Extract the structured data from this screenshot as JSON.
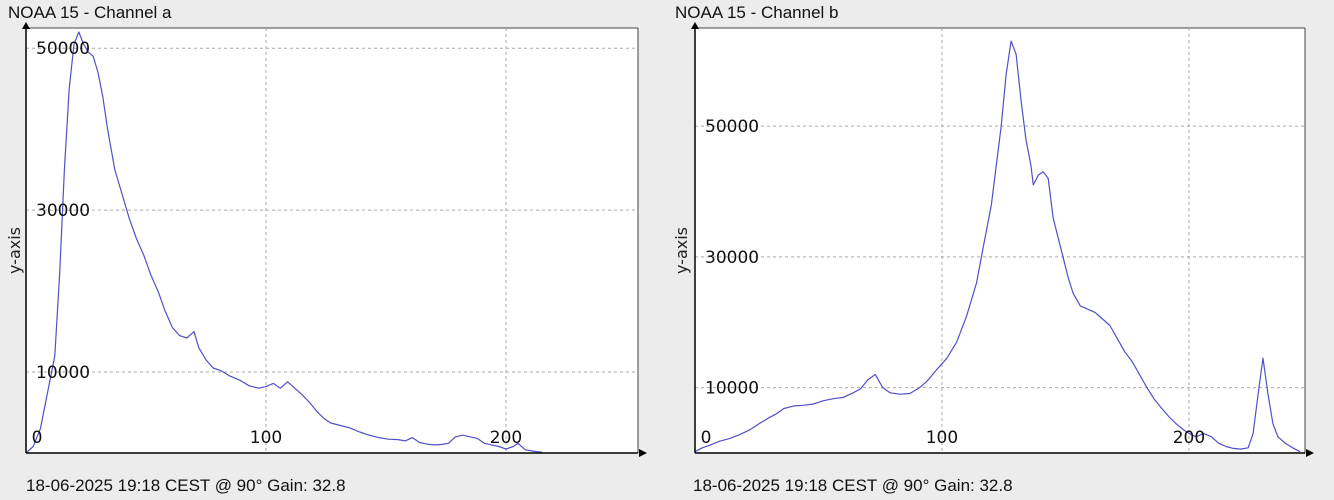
{
  "chart_data": [
    {
      "type": "line",
      "title": "NOAA 15 - Channel a",
      "footer": "18-06-2025 19:18 CEST @ 90° Gain: 32.8",
      "ylabel": "y-axis",
      "xlabel": "",
      "xlim": [
        0,
        255
      ],
      "ylim": [
        0,
        52500
      ],
      "x_ticks": [
        0,
        100,
        200
      ],
      "y_ticks": [
        10000,
        30000,
        50000
      ],
      "grid": true,
      "line_color": "#5050c8",
      "points": [
        [
          0,
          0
        ],
        [
          3,
          800
        ],
        [
          6,
          3000
        ],
        [
          9,
          7500
        ],
        [
          12,
          12000
        ],
        [
          14,
          22000
        ],
        [
          16,
          35000
        ],
        [
          18,
          45000
        ],
        [
          20,
          50500
        ],
        [
          22,
          52000
        ],
        [
          24,
          50500
        ],
        [
          26,
          49500
        ],
        [
          28,
          49000
        ],
        [
          30,
          47000
        ],
        [
          32,
          44000
        ],
        [
          34,
          40000
        ],
        [
          37,
          35000
        ],
        [
          40,
          32000
        ],
        [
          43,
          29000
        ],
        [
          46,
          26500
        ],
        [
          49,
          24500
        ],
        [
          52,
          22000
        ],
        [
          55,
          20000
        ],
        [
          58,
          17500
        ],
        [
          61,
          15500
        ],
        [
          64,
          14500
        ],
        [
          67,
          14200
        ],
        [
          70,
          15000
        ],
        [
          72,
          13000
        ],
        [
          75,
          11500
        ],
        [
          78,
          10500
        ],
        [
          81,
          10200
        ],
        [
          85,
          9500
        ],
        [
          89,
          9000
        ],
        [
          93,
          8300
        ],
        [
          97,
          8000
        ],
        [
          100,
          8200
        ],
        [
          103,
          8600
        ],
        [
          106,
          8000
        ],
        [
          109,
          8800
        ],
        [
          112,
          8000
        ],
        [
          115,
          7200
        ],
        [
          118,
          6300
        ],
        [
          121,
          5200
        ],
        [
          124,
          4300
        ],
        [
          127,
          3700
        ],
        [
          131,
          3400
        ],
        [
          135,
          3100
        ],
        [
          139,
          2600
        ],
        [
          143,
          2200
        ],
        [
          147,
          1900
        ],
        [
          151,
          1700
        ],
        [
          155,
          1650
        ],
        [
          158,
          1500
        ],
        [
          161,
          1900
        ],
        [
          164,
          1300
        ],
        [
          167,
          1100
        ],
        [
          170,
          1000
        ],
        [
          173,
          1050
        ],
        [
          176,
          1200
        ],
        [
          179,
          2000
        ],
        [
          182,
          2200
        ],
        [
          185,
          2000
        ],
        [
          188,
          1800
        ],
        [
          191,
          1200
        ],
        [
          194,
          1000
        ],
        [
          197,
          800
        ],
        [
          200,
          500
        ],
        [
          203,
          800
        ],
        [
          205,
          1200
        ],
        [
          208,
          400
        ],
        [
          212,
          200
        ],
        [
          215,
          100
        ]
      ]
    },
    {
      "type": "line",
      "title": "NOAA 15 - Channel b",
      "footer": "18-06-2025 19:18 CEST @ 90° Gain: 32.8",
      "ylabel": "y-axis",
      "xlabel": "",
      "xlim": [
        0,
        247
      ],
      "ylim": [
        0,
        65000
      ],
      "x_ticks": [
        0,
        100,
        200
      ],
      "y_ticks": [
        10000,
        30000,
        50000
      ],
      "grid": true,
      "line_color": "#5050c8",
      "points": [
        [
          0,
          200
        ],
        [
          3,
          800
        ],
        [
          6,
          1200
        ],
        [
          10,
          1800
        ],
        [
          14,
          2200
        ],
        [
          18,
          2800
        ],
        [
          22,
          3500
        ],
        [
          26,
          4500
        ],
        [
          30,
          5400
        ],
        [
          33,
          6000
        ],
        [
          36,
          6800
        ],
        [
          40,
          7200
        ],
        [
          44,
          7300
        ],
        [
          48,
          7500
        ],
        [
          52,
          8000
        ],
        [
          56,
          8300
        ],
        [
          60,
          8500
        ],
        [
          64,
          9200
        ],
        [
          67,
          9800
        ],
        [
          70,
          11200
        ],
        [
          73,
          12000
        ],
        [
          76,
          10000
        ],
        [
          79,
          9200
        ],
        [
          83,
          9000
        ],
        [
          87,
          9100
        ],
        [
          91,
          10000
        ],
        [
          94,
          11000
        ],
        [
          98,
          12800
        ],
        [
          102,
          14500
        ],
        [
          106,
          17000
        ],
        [
          110,
          21000
        ],
        [
          114,
          26000
        ],
        [
          117,
          32000
        ],
        [
          120,
          38000
        ],
        [
          122,
          44000
        ],
        [
          124,
          50000
        ],
        [
          126,
          58000
        ],
        [
          128,
          63000
        ],
        [
          130,
          61000
        ],
        [
          132,
          54000
        ],
        [
          134,
          48000
        ],
        [
          136,
          44000
        ],
        [
          137,
          41000
        ],
        [
          139,
          42500
        ],
        [
          141,
          43000
        ],
        [
          143,
          42000
        ],
        [
          145,
          36000
        ],
        [
          147,
          33000
        ],
        [
          149,
          30000
        ],
        [
          151,
          27000
        ],
        [
          153,
          24500
        ],
        [
          156,
          22500
        ],
        [
          159,
          22000
        ],
        [
          162,
          21500
        ],
        [
          165,
          20500
        ],
        [
          168,
          19500
        ],
        [
          171,
          17500
        ],
        [
          174,
          15500
        ],
        [
          177,
          14000
        ],
        [
          180,
          12000
        ],
        [
          183,
          10000
        ],
        [
          186,
          8200
        ],
        [
          189,
          6800
        ],
        [
          192,
          5500
        ],
        [
          195,
          4400
        ],
        [
          198,
          3500
        ],
        [
          201,
          2800
        ],
        [
          203,
          2500
        ],
        [
          206,
          3000
        ],
        [
          209,
          2500
        ],
        [
          212,
          1500
        ],
        [
          215,
          1000
        ],
        [
          218,
          700
        ],
        [
          221,
          600
        ],
        [
          224,
          800
        ],
        [
          226,
          3000
        ],
        [
          228,
          9000
        ],
        [
          230,
          14500
        ],
        [
          232,
          9000
        ],
        [
          234,
          4500
        ],
        [
          236,
          2500
        ],
        [
          239,
          1500
        ],
        [
          242,
          800
        ],
        [
          245,
          200
        ]
      ]
    }
  ]
}
